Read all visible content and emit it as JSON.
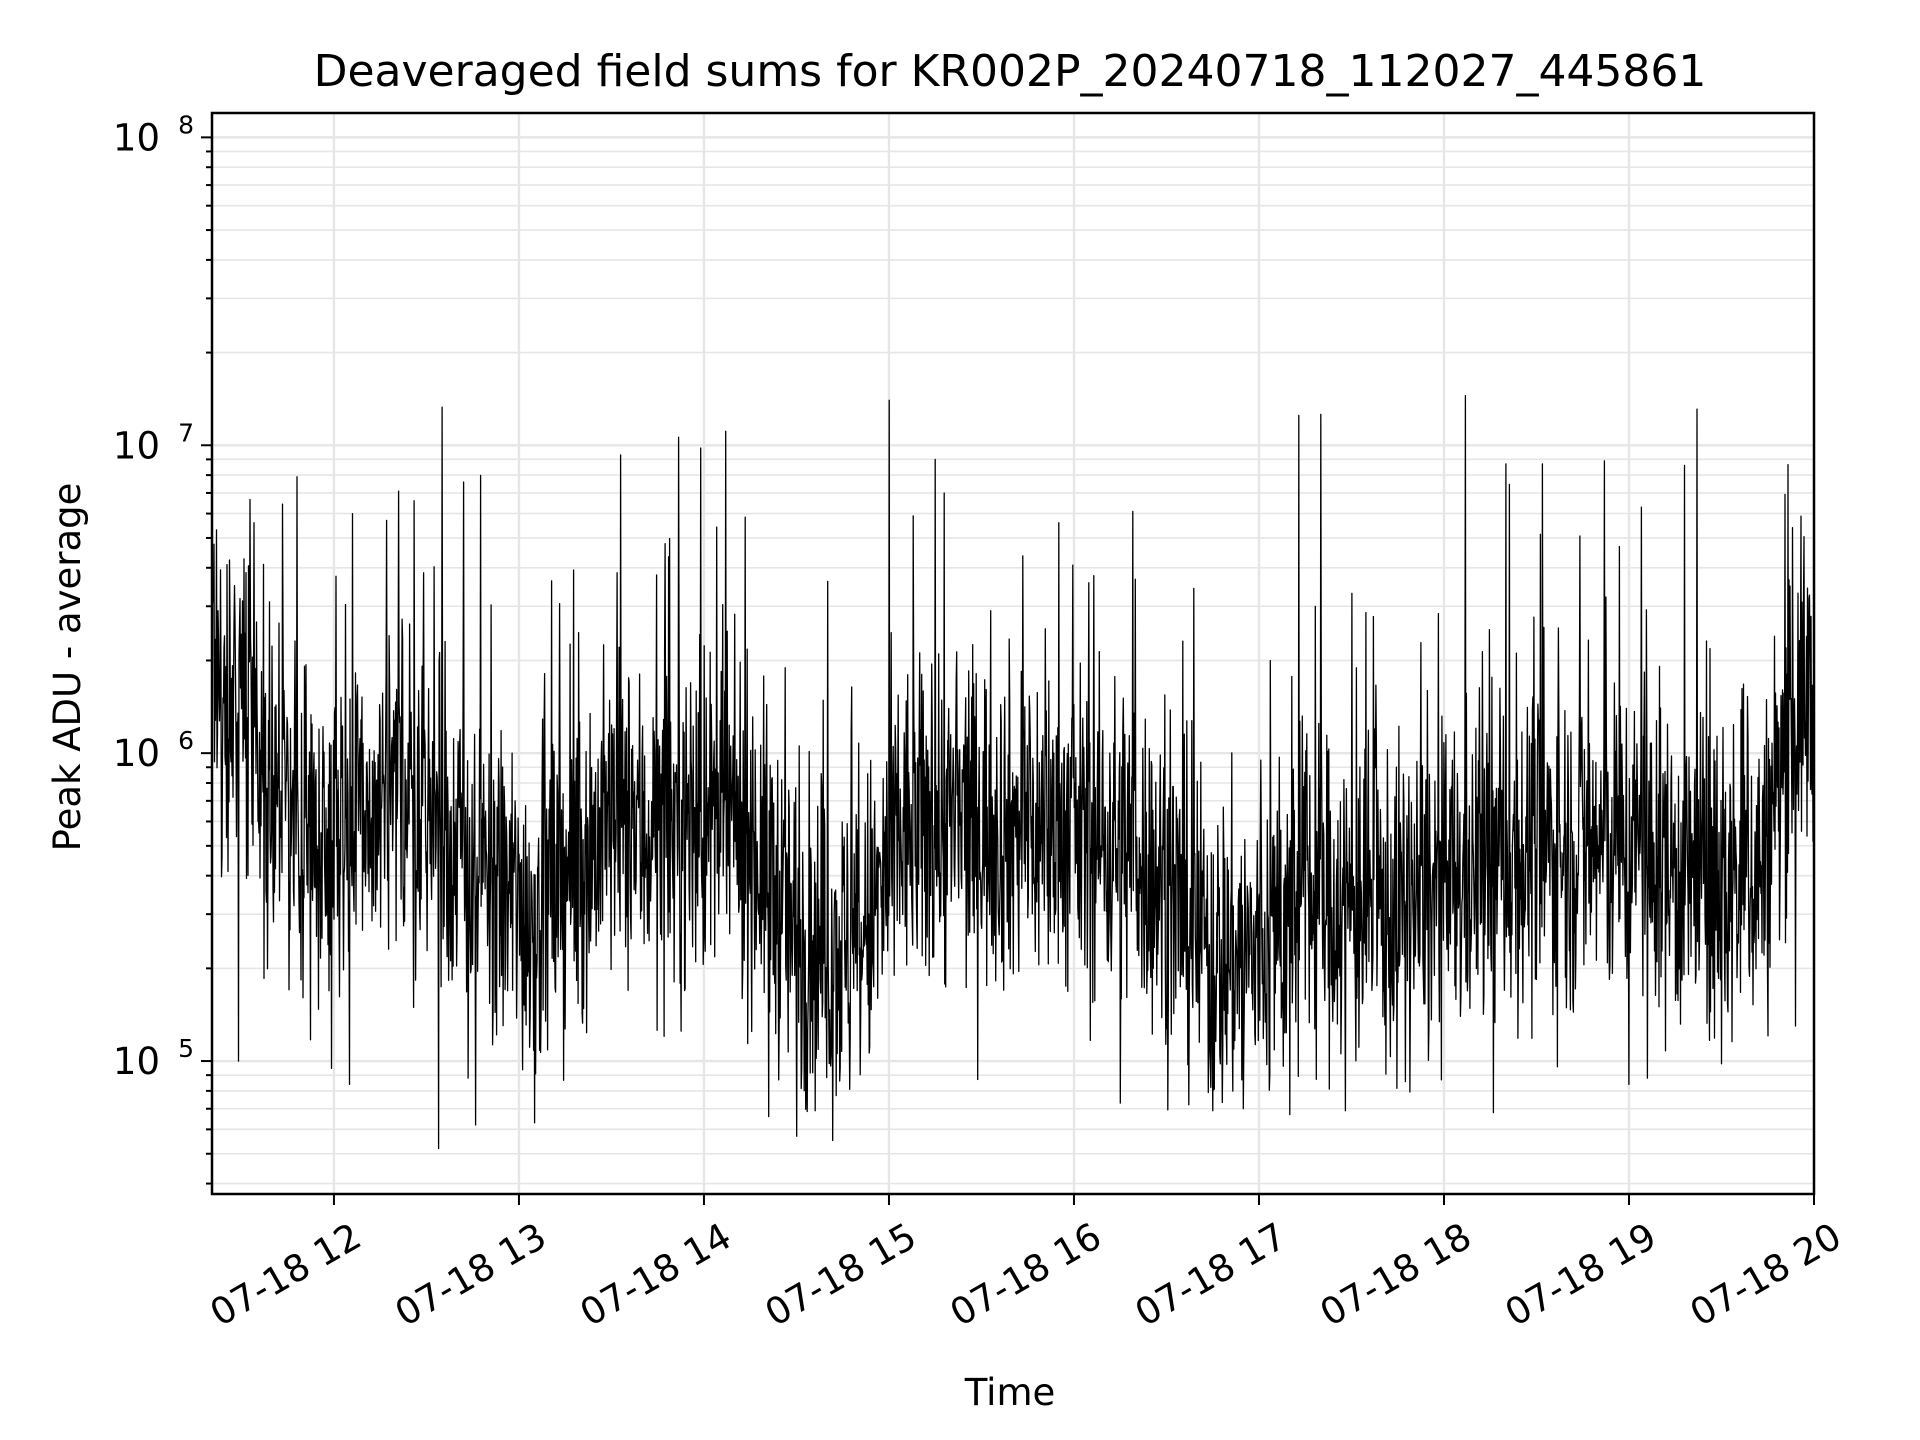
{
  "chart_data": {
    "type": "line",
    "title": "Deaveraged field sums for KR002P_20240718_112027_445861",
    "xlabel": "Time",
    "ylabel": "Peak ADU - average",
    "x_type": "datetime",
    "xlim": [
      "2024-07-18T11:20:27",
      "2024-07-18T20:00:00"
    ],
    "x_ticks": [
      "2024-07-18T12:00",
      "2024-07-18T13:00",
      "2024-07-18T14:00",
      "2024-07-18T15:00",
      "2024-07-18T16:00",
      "2024-07-18T17:00",
      "2024-07-18T18:00",
      "2024-07-18T19:00",
      "2024-07-18T20:00"
    ],
    "x_tick_labels": [
      "07-18 12",
      "07-18 13",
      "07-18 14",
      "07-18 15",
      "07-18 16",
      "07-18 17",
      "07-18 18",
      "07-18 19",
      "07-18 20"
    ],
    "x_tick_rotation_deg": 30,
    "y_scale": "log",
    "ylim": [
      37000,
      120000000
    ],
    "y_ticks": [
      {
        "value": 100000,
        "base": "10",
        "exp": "5"
      },
      {
        "value": 1000000,
        "base": "10",
        "exp": "6"
      },
      {
        "value": 10000000,
        "base": "10",
        "exp": "7"
      },
      {
        "value": 100000000,
        "base": "10",
        "exp": "8"
      }
    ],
    "grid": true,
    "grid_minor": true,
    "line_color": "#000000",
    "series": [
      {
        "level_profile": [
          {
            "x": "2024-07-18T11:20",
            "y": 1500000
          },
          {
            "x": "2024-07-18T11:30",
            "y": 1500000
          },
          {
            "x": "2024-07-18T11:40",
            "y": 800000
          },
          {
            "x": "2024-07-18T11:50",
            "y": 550000
          },
          {
            "x": "2024-07-18T12:10",
            "y": 600000
          },
          {
            "x": "2024-07-18T12:30",
            "y": 700000
          },
          {
            "x": "2024-07-18T12:45",
            "y": 400000
          },
          {
            "x": "2024-07-18T13:05",
            "y": 300000
          },
          {
            "x": "2024-07-18T13:20",
            "y": 450000
          },
          {
            "x": "2024-07-18T13:30",
            "y": 600000
          },
          {
            "x": "2024-07-18T13:40",
            "y": 550000
          },
          {
            "x": "2024-07-18T14:00",
            "y": 600000
          },
          {
            "x": "2024-07-18T14:15",
            "y": 550000
          },
          {
            "x": "2024-07-18T14:30",
            "y": 250000
          },
          {
            "x": "2024-07-18T14:50",
            "y": 220000
          },
          {
            "x": "2024-07-18T15:05",
            "y": 550000
          },
          {
            "x": "2024-07-18T15:30",
            "y": 600000
          },
          {
            "x": "2024-07-18T16:00",
            "y": 550000
          },
          {
            "x": "2024-07-18T16:20",
            "y": 500000
          },
          {
            "x": "2024-07-18T16:45",
            "y": 220000
          },
          {
            "x": "2024-07-18T17:00",
            "y": 220000
          },
          {
            "x": "2024-07-18T17:15",
            "y": 350000
          },
          {
            "x": "2024-07-18T17:45",
            "y": 300000
          },
          {
            "x": "2024-07-18T18:00",
            "y": 350000
          },
          {
            "x": "2024-07-18T18:15",
            "y": 450000
          },
          {
            "x": "2024-07-18T18:45",
            "y": 500000
          },
          {
            "x": "2024-07-18T19:00",
            "y": 500000
          },
          {
            "x": "2024-07-18T19:30",
            "y": 350000
          },
          {
            "x": "2024-07-18T19:45",
            "y": 450000
          },
          {
            "x": "2024-07-18T19:52",
            "y": 1400000
          },
          {
            "x": "2024-07-18T20:00",
            "y": 1500000
          }
        ],
        "spikes": [
          {
            "x": "2024-07-18T11:21",
            "y": 3100000
          },
          {
            "x": "2024-07-18T11:34",
            "y": 5600000
          },
          {
            "x": "2024-07-18T11:48",
            "y": 7900000
          },
          {
            "x": "2024-07-18T12:06",
            "y": 6000000
          },
          {
            "x": "2024-07-18T12:17",
            "y": 5700000
          },
          {
            "x": "2024-07-18T12:21",
            "y": 7100000
          },
          {
            "x": "2024-07-18T12:26",
            "y": 6600000
          },
          {
            "x": "2024-07-18T12:35",
            "y": 13300000
          },
          {
            "x": "2024-07-18T12:42",
            "y": 7600000
          },
          {
            "x": "2024-07-18T12:46",
            "y": 6600000
          },
          {
            "x": "2024-07-18T13:33",
            "y": 9300000
          },
          {
            "x": "2024-07-18T13:59",
            "y": 9800000
          },
          {
            "x": "2024-07-18T14:07",
            "y": 11100000
          },
          {
            "x": "2024-07-18T15:00",
            "y": 14000000
          },
          {
            "x": "2024-07-18T15:15",
            "y": 9000000
          },
          {
            "x": "2024-07-18T15:18",
            "y": 7000000
          },
          {
            "x": "2024-07-18T15:55",
            "y": 5600000
          },
          {
            "x": "2024-07-18T16:19",
            "y": 6100000
          },
          {
            "x": "2024-07-18T17:13",
            "y": 12500000
          },
          {
            "x": "2024-07-18T17:20",
            "y": 12600000
          },
          {
            "x": "2024-07-18T18:07",
            "y": 14500000
          },
          {
            "x": "2024-07-18T18:20",
            "y": 8700000
          },
          {
            "x": "2024-07-18T18:32",
            "y": 8700000
          },
          {
            "x": "2024-07-18T18:52",
            "y": 8900000
          },
          {
            "x": "2024-07-18T19:04",
            "y": 6300000
          },
          {
            "x": "2024-07-18T19:18",
            "y": 8600000
          },
          {
            "x": "2024-07-18T19:22",
            "y": 13100000
          },
          {
            "x": "2024-07-18T19:53",
            "y": 5400000
          }
        ],
        "dips": [
          {
            "x": "2024-07-18T11:29",
            "y": 100000
          },
          {
            "x": "2024-07-18T12:05",
            "y": 84000
          },
          {
            "x": "2024-07-18T12:34",
            "y": 52000
          },
          {
            "x": "2024-07-18T12:46",
            "y": 62000
          },
          {
            "x": "2024-07-18T13:05",
            "y": 63000
          },
          {
            "x": "2024-07-18T14:21",
            "y": 66000
          },
          {
            "x": "2024-07-18T14:30",
            "y": 57000
          },
          {
            "x": "2024-07-18T14:36",
            "y": 69000
          },
          {
            "x": "2024-07-18T16:15",
            "y": 73000
          },
          {
            "x": "2024-07-18T16:45",
            "y": 69000
          },
          {
            "x": "2024-07-18T16:55",
            "y": 70000
          },
          {
            "x": "2024-07-18T17:10",
            "y": 67000
          },
          {
            "x": "2024-07-18T17:28",
            "y": 69000
          },
          {
            "x": "2024-07-18T18:16",
            "y": 68000
          },
          {
            "x": "2024-07-18T19:00",
            "y": 84000
          },
          {
            "x": "2024-07-18T19:06",
            "y": 88000
          },
          {
            "x": "2024-07-18T19:30",
            "y": 98000
          },
          {
            "x": "2024-07-18T19:54",
            "y": 130000
          }
        ]
      }
    ]
  }
}
